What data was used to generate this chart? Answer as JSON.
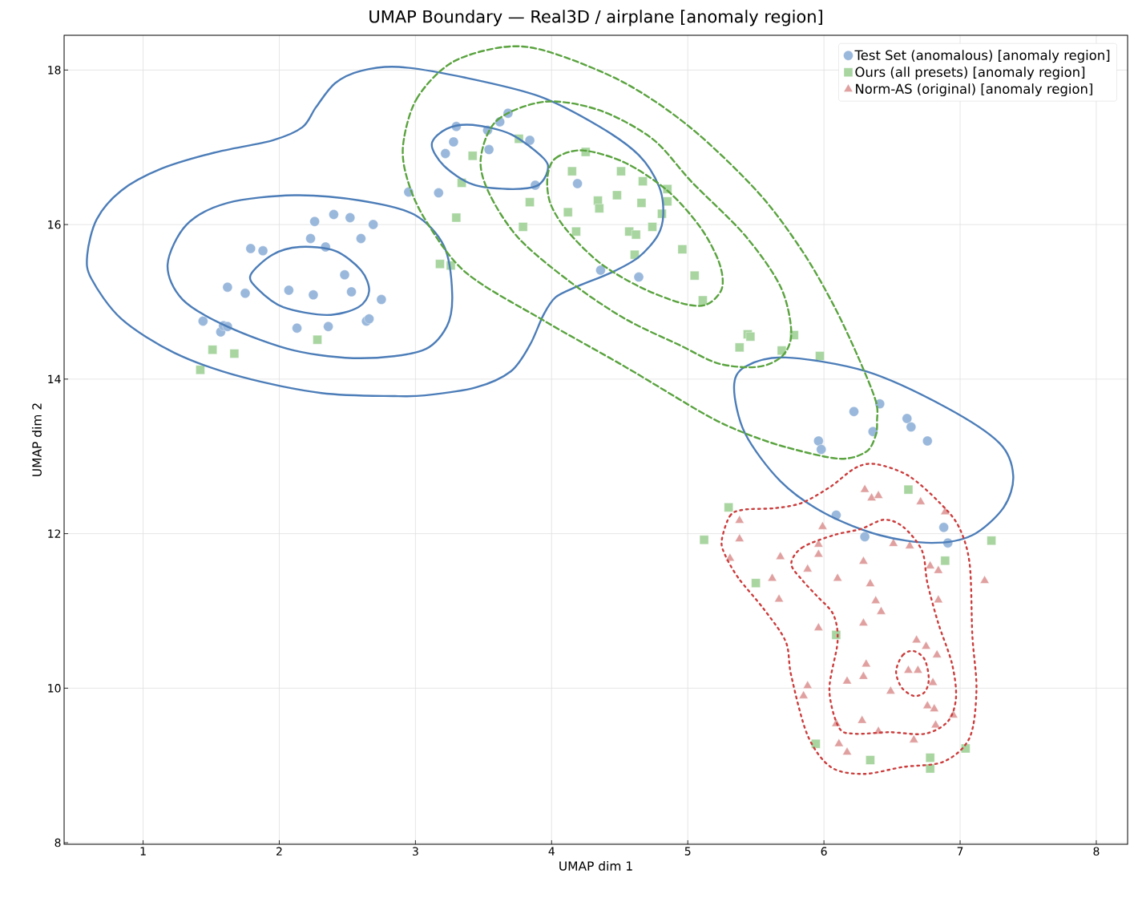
{
  "chart_data": {
    "type": "scatter",
    "title": "UMAP Boundary — Real3D / airplane [anomaly region]",
    "xlabel": "UMAP dim 1",
    "ylabel": "UMAP dim 2",
    "xlim": [
      0.42,
      8.23
    ],
    "ylim": [
      7.98,
      18.45
    ],
    "xticks": [
      1,
      2,
      3,
      4,
      5,
      6,
      7,
      8
    ],
    "yticks": [
      8,
      10,
      12,
      14,
      16,
      18
    ],
    "grid": true,
    "legend": "top right",
    "series": [
      {
        "name": "Test Set (anomalous) [anomaly region]",
        "marker": "circle",
        "color": "#9ab8db",
        "x": [
          1.44,
          1.57,
          1.59,
          1.62,
          1.62,
          1.75,
          1.88,
          1.79,
          2.07,
          2.25,
          2.13,
          2.36,
          2.23,
          2.26,
          2.34,
          2.4,
          2.52,
          2.6,
          2.69,
          2.48,
          2.53,
          2.64,
          2.66,
          2.75,
          2.95,
          3.17,
          3.22,
          3.28,
          3.3,
          3.54,
          3.53,
          3.62,
          3.68,
          3.84,
          3.88,
          4.19,
          4.36,
          4.64,
          6.22,
          6.41,
          6.36,
          6.61,
          6.64,
          6.76,
          5.96,
          5.98,
          6.09,
          6.3,
          6.88,
          6.91
        ],
        "values": [
          14.75,
          14.61,
          14.69,
          14.68,
          15.19,
          15.11,
          15.66,
          15.69,
          15.15,
          15.09,
          14.66,
          14.68,
          15.82,
          16.04,
          15.71,
          16.13,
          16.09,
          15.82,
          16.0,
          15.35,
          15.13,
          14.75,
          14.78,
          15.03,
          16.42,
          16.41,
          16.92,
          17.07,
          17.27,
          16.97,
          17.22,
          17.33,
          17.44,
          17.09,
          16.51,
          16.53,
          15.41,
          15.32,
          13.58,
          13.68,
          13.32,
          13.49,
          13.38,
          13.2,
          13.2,
          13.09,
          12.24,
          11.96,
          12.08,
          11.88
        ]
      },
      {
        "name": "Ours (all presets) [anomaly region]",
        "marker": "square",
        "color": "#a8d5a0",
        "x": [
          1.42,
          1.51,
          1.67,
          2.28,
          3.42,
          3.34,
          3.3,
          3.18,
          3.26,
          3.76,
          3.84,
          3.79,
          4.25,
          4.15,
          4.51,
          4.67,
          4.85,
          4.85,
          4.48,
          4.34,
          4.35,
          4.66,
          4.12,
          4.81,
          4.18,
          4.57,
          4.62,
          4.74,
          4.61,
          4.96,
          5.05,
          5.11,
          5.38,
          5.44,
          5.46,
          5.78,
          5.69,
          5.97,
          5.3,
          6.62,
          6.89,
          7.23,
          5.12,
          5.5,
          6.09,
          5.94,
          6.34,
          6.78,
          6.78,
          7.04
        ],
        "values": [
          14.12,
          14.38,
          14.33,
          14.51,
          16.89,
          16.54,
          16.09,
          15.49,
          15.47,
          17.11,
          16.29,
          15.97,
          16.94,
          16.69,
          16.69,
          16.56,
          16.46,
          16.3,
          16.38,
          16.31,
          16.21,
          16.28,
          16.16,
          16.14,
          15.91,
          15.91,
          15.87,
          15.97,
          15.61,
          15.68,
          15.34,
          15.02,
          14.41,
          14.58,
          14.55,
          14.57,
          14.37,
          14.3,
          12.34,
          12.57,
          11.65,
          11.91,
          11.92,
          11.36,
          10.69,
          9.28,
          9.07,
          9.1,
          8.96,
          9.22
        ]
      },
      {
        "name": "Norm-AS (original) [anomaly region]",
        "marker": "triangle",
        "color": "#e0a0a0",
        "x": [
          6.3,
          6.35,
          6.4,
          6.71,
          6.89,
          5.38,
          5.38,
          5.99,
          5.96,
          5.96,
          5.31,
          5.68,
          5.88,
          5.62,
          6.1,
          6.29,
          6.34,
          6.51,
          6.63,
          6.78,
          6.84,
          7.18,
          5.67,
          6.38,
          6.42,
          6.84,
          5.96,
          6.29,
          6.68,
          6.75,
          6.83,
          6.31,
          6.29,
          6.17,
          6.62,
          6.69,
          6.8,
          5.88,
          5.85,
          6.49,
          6.76,
          6.81,
          6.95,
          6.28,
          6.09,
          6.82,
          6.4,
          6.66,
          6.11,
          6.17
        ],
        "values": [
          12.57,
          12.46,
          12.49,
          12.41,
          12.28,
          12.17,
          11.93,
          12.09,
          11.86,
          11.73,
          11.68,
          11.7,
          11.54,
          11.42,
          11.42,
          11.64,
          11.35,
          11.87,
          11.84,
          11.58,
          11.52,
          11.39,
          11.15,
          11.13,
          10.99,
          11.14,
          10.78,
          10.84,
          10.62,
          10.54,
          10.43,
          10.31,
          10.15,
          10.09,
          10.23,
          10.23,
          10.07,
          10.03,
          9.9,
          9.96,
          9.77,
          9.73,
          9.65,
          9.58,
          9.54,
          9.52,
          9.44,
          9.33,
          9.28,
          9.17
        ]
      }
    ]
  }
}
